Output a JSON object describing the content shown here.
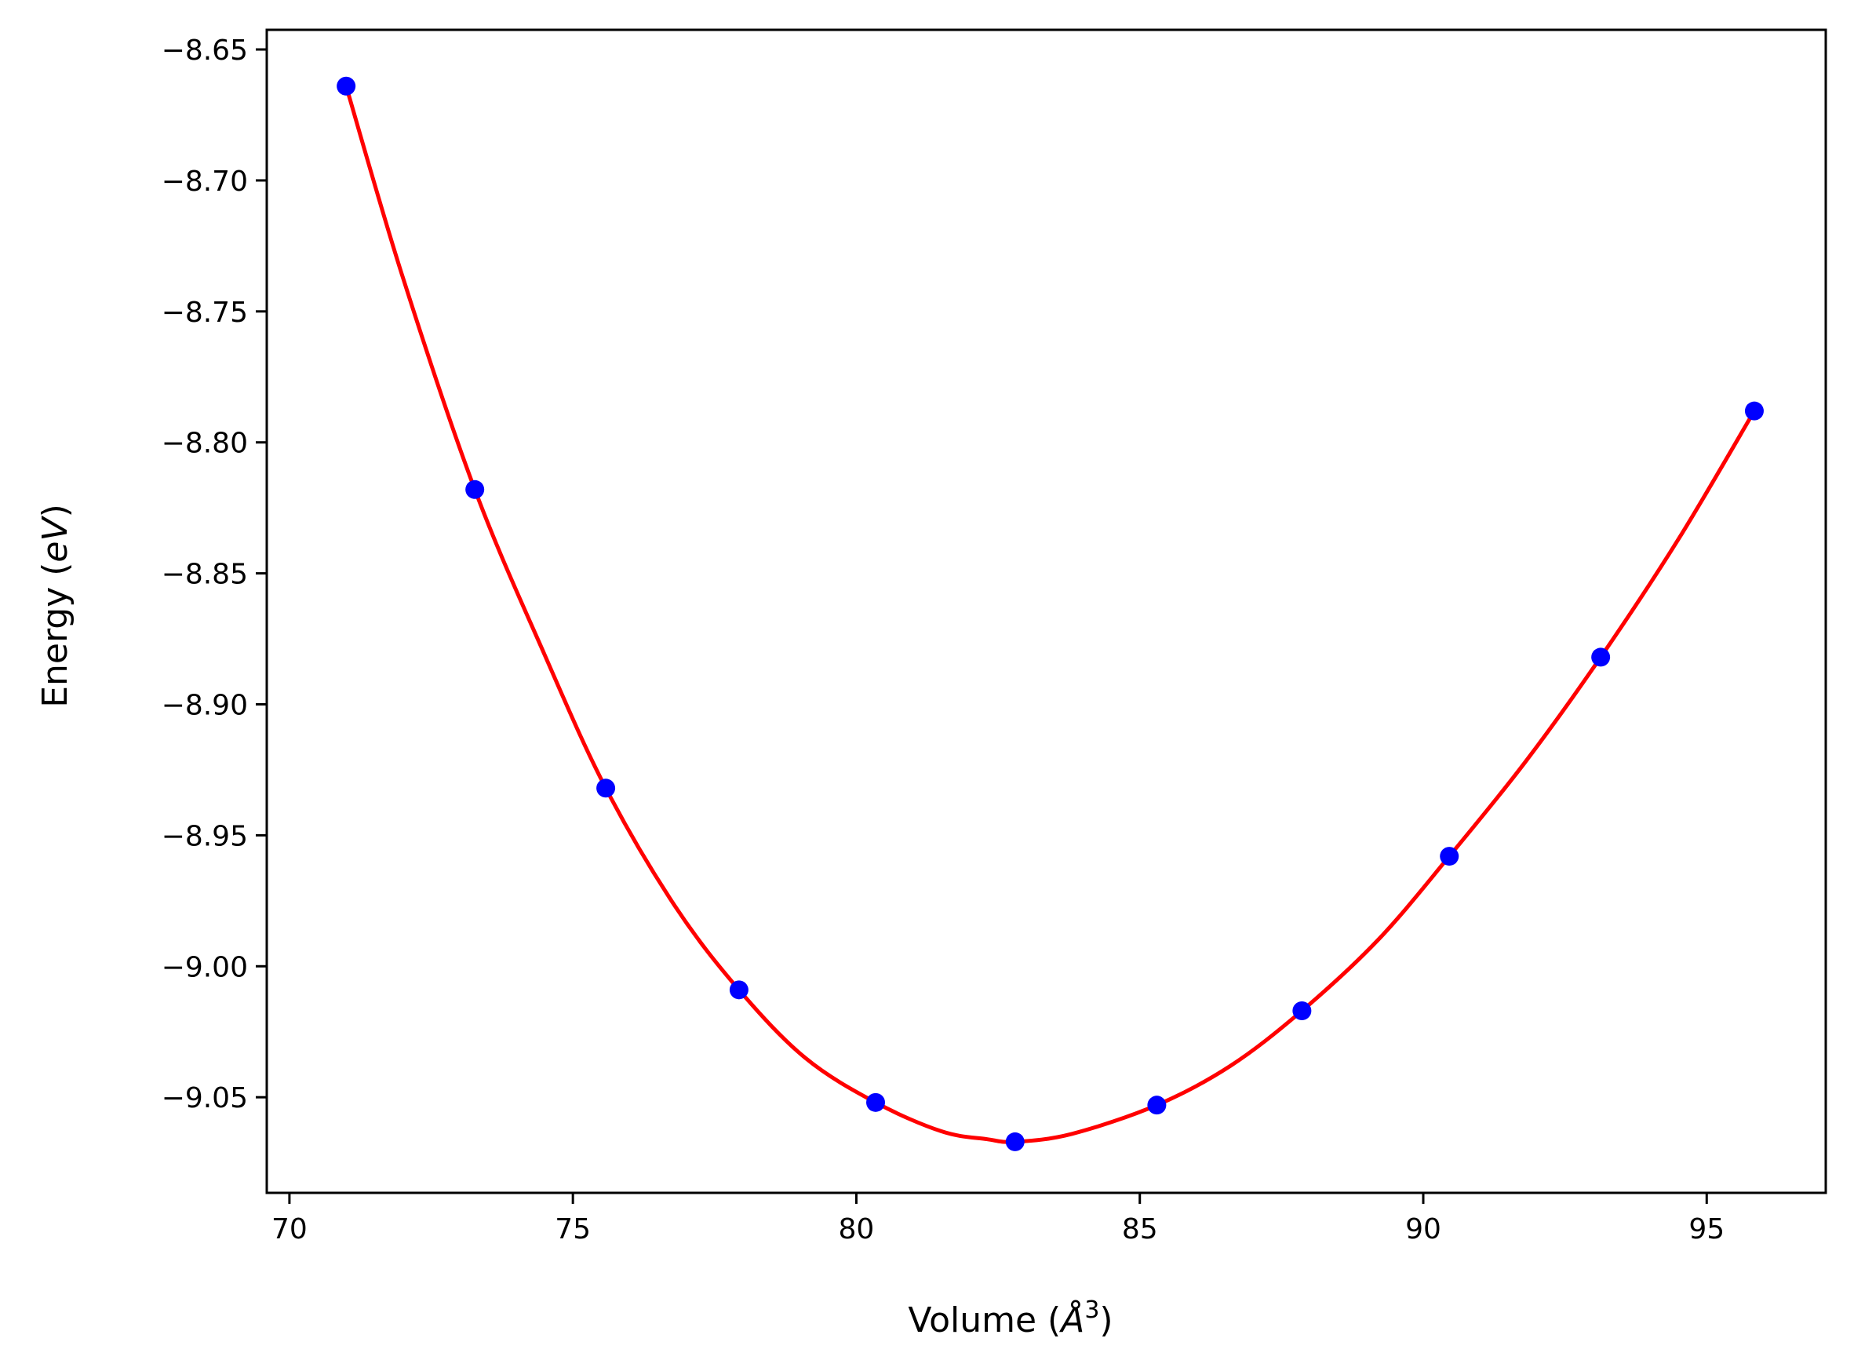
{
  "chart_data": {
    "type": "line",
    "xlabel": "Volume (Å³)",
    "xlabel_parts": {
      "prefix": "Volume (",
      "unit": "Å",
      "exponent": "3",
      "suffix": ")"
    },
    "ylabel": "Energy (eV)",
    "ylabel_parts": {
      "prefix": "Energy (",
      "unit": "eV",
      "suffix": ")"
    },
    "xlim": [
      69.6,
      97.1
    ],
    "ylim": [
      -9.0865,
      -8.6425
    ],
    "xticks": [
      70,
      75,
      80,
      85,
      90,
      95
    ],
    "xtick_labels": [
      "70",
      "75",
      "80",
      "85",
      "90",
      "95"
    ],
    "yticks": [
      -8.65,
      -8.7,
      -8.75,
      -8.8,
      -8.85,
      -8.9,
      -8.95,
      -9.0,
      -9.05
    ],
    "ytick_labels": [
      "−8.65",
      "−8.70",
      "−8.75",
      "−8.80",
      "−8.85",
      "−8.90",
      "−8.95",
      "−9.00",
      "−9.05"
    ],
    "grid": false,
    "series": [
      {
        "kind": "points",
        "color": "#0000ff",
        "x": [
          71.0,
          73.27,
          75.58,
          77.93,
          80.34,
          82.8,
          85.3,
          87.86,
          90.46,
          93.13,
          95.84
        ],
        "y": [
          -8.664,
          -8.818,
          -8.932,
          -9.009,
          -9.052,
          -9.067,
          -9.053,
          -9.017,
          -8.958,
          -8.882,
          -8.788
        ]
      },
      {
        "kind": "fit-curve",
        "color": "#ff0000",
        "x": [
          71.0,
          72.0,
          73.27,
          74.5,
          75.58,
          76.8,
          77.93,
          79.1,
          80.34,
          81.5,
          82.3,
          82.8,
          83.8,
          85.3,
          86.6,
          87.86,
          89.2,
          90.46,
          91.8,
          93.13,
          94.5,
          95.84
        ],
        "y": [
          -8.664,
          -8.737,
          -8.818,
          -8.881,
          -8.932,
          -8.977,
          -9.009,
          -9.035,
          -9.052,
          -9.063,
          -9.066,
          -9.067,
          -9.064,
          -9.053,
          -9.038,
          -9.017,
          -8.99,
          -8.958,
          -8.922,
          -8.882,
          -8.837,
          -8.788
        ]
      }
    ]
  }
}
